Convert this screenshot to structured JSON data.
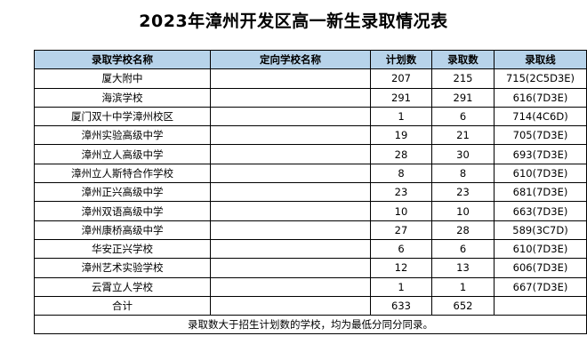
{
  "title": "2023年漳州开发区高一新生录取情况表",
  "headers": [
    "录取学校名称",
    "定向学校名称",
    "计划数",
    "录取数",
    "录取线"
  ],
  "rows": [
    {
      "school": "厦大附中",
      "target": "",
      "plan": "207",
      "admitted": "215",
      "cutoff": "715(2C5D3E)"
    },
    {
      "school": "海滨学校",
      "target": "",
      "plan": "291",
      "admitted": "291",
      "cutoff": "616(7D3E)"
    },
    {
      "school": "厦门双十中学漳州校区",
      "target": "",
      "plan": "1",
      "admitted": "6",
      "cutoff": "714(4C6D)"
    },
    {
      "school": "漳州实验高级中学",
      "target": "",
      "plan": "19",
      "admitted": "21",
      "cutoff": "705(7D3E)"
    },
    {
      "school": "漳州立人高级中学",
      "target": "",
      "plan": "28",
      "admitted": "30",
      "cutoff": "693(7D3E)"
    },
    {
      "school": "漳州立人斯特合作学校",
      "target": "",
      "plan": "8",
      "admitted": "8",
      "cutoff": "610(7D3E)"
    },
    {
      "school": "漳州正兴高级中学",
      "target": "",
      "plan": "23",
      "admitted": "23",
      "cutoff": "681(7D3E)"
    },
    {
      "school": "漳州双语高级中学",
      "target": "",
      "plan": "10",
      "admitted": "10",
      "cutoff": "663(7D3E)"
    },
    {
      "school": "漳州康桥高级中学",
      "target": "",
      "plan": "27",
      "admitted": "28",
      "cutoff": "589(3C7D)"
    },
    {
      "school": "华安正兴学校",
      "target": "",
      "plan": "6",
      "admitted": "6",
      "cutoff": "610(7D3E)"
    },
    {
      "school": "漳州艺术实验学校",
      "target": "",
      "plan": "12",
      "admitted": "13",
      "cutoff": "606(7D3E)"
    },
    {
      "school": "云霄立人学校",
      "target": "",
      "plan": "1",
      "admitted": "1",
      "cutoff": "667(7D3E)"
    }
  ],
  "total": {
    "label": "合计",
    "target": "",
    "plan": "633",
    "admitted": "652",
    "cutoff": ""
  },
  "footnote": "录取数大于招生计划数的学校，均为最低分同分同录。",
  "colors": {
    "header_bg": "#b7d3ea",
    "border": "#000000"
  }
}
